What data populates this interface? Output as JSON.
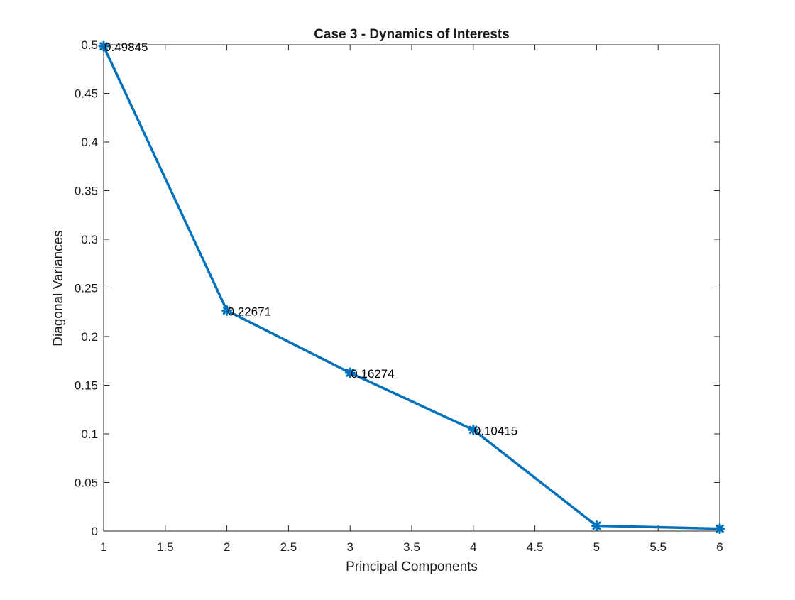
{
  "chart_data": {
    "type": "line",
    "title": "Case 3 - Dynamics of Interests",
    "xlabel": "Principal Components",
    "ylabel": "Diagonal Variances",
    "xlim": [
      1,
      6
    ],
    "ylim": [
      0,
      0.5
    ],
    "xticks": [
      "1",
      "1.5",
      "2",
      "2.5",
      "3",
      "3.5",
      "4",
      "4.5",
      "5",
      "5.5",
      "6"
    ],
    "yticks": [
      "0",
      "0.05",
      "0.1",
      "0.15",
      "0.2",
      "0.25",
      "0.3",
      "0.35",
      "0.4",
      "0.45",
      "0.5"
    ],
    "grid": false,
    "series": [
      {
        "x": [
          1,
          2,
          3,
          4,
          5,
          6
        ],
        "y": [
          0.49845,
          0.22671,
          0.16274,
          0.10415,
          0.0055,
          0.0025
        ],
        "color": "#0072BD",
        "marker": "asterisk"
      }
    ],
    "annotations": [
      {
        "x": 1,
        "y": 0.49845,
        "text": "0.49845"
      },
      {
        "x": 2,
        "y": 0.22671,
        "text": "0.22671"
      },
      {
        "x": 3,
        "y": 0.16274,
        "text": "0.16274"
      },
      {
        "x": 4,
        "y": 0.10415,
        "text": "0.10415"
      }
    ]
  }
}
